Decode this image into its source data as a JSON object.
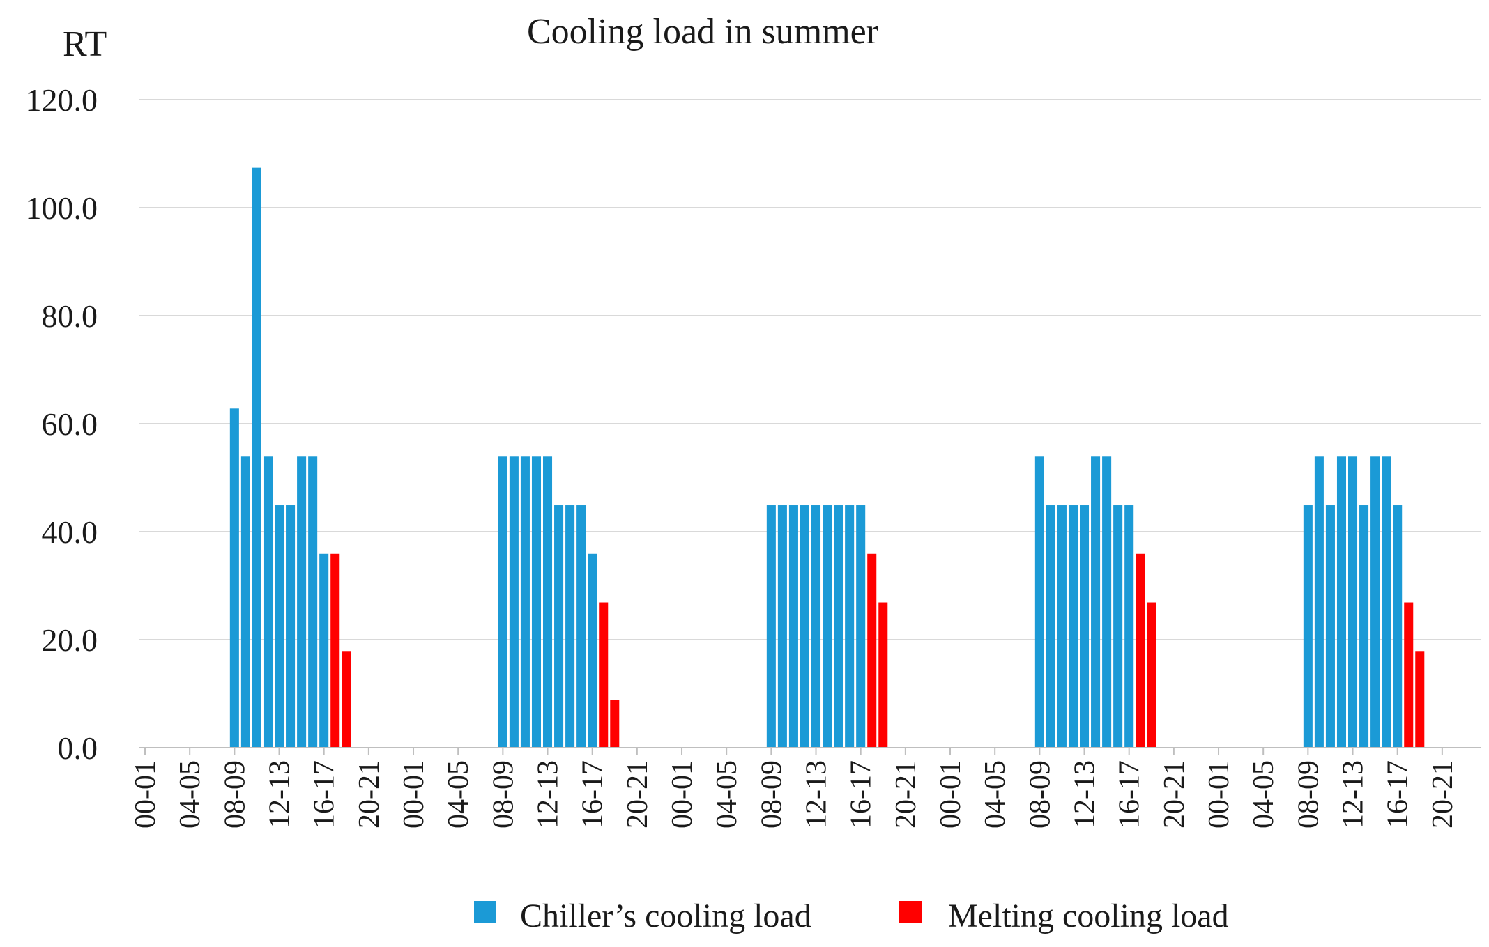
{
  "chart_data": {
    "type": "bar",
    "title": "Cooling load in summer",
    "ylabel": "RT",
    "xlabel": "",
    "ylim": [
      0,
      120
    ],
    "yticks": [
      "0.0",
      "20.0",
      "40.0",
      "60.0",
      "80.0",
      "100.0",
      "120.0"
    ],
    "grid": true,
    "legend_position": "bottom",
    "categories": [
      "00-01",
      "01-02",
      "02-03",
      "03-04",
      "04-05",
      "05-06",
      "06-07",
      "07-08",
      "08-09",
      "09-10",
      "10-11",
      "11-12",
      "12-13",
      "13-14",
      "14-15",
      "15-16",
      "16-17",
      "17-18",
      "18-19",
      "19-20",
      "20-21",
      "21-22",
      "22-23",
      "23-24",
      "00-01",
      "01-02",
      "02-03",
      "03-04",
      "04-05",
      "05-06",
      "06-07",
      "07-08",
      "08-09",
      "09-10",
      "10-11",
      "11-12",
      "12-13",
      "13-14",
      "14-15",
      "15-16",
      "16-17",
      "17-18",
      "18-19",
      "19-20",
      "20-21",
      "21-22",
      "22-23",
      "23-24",
      "00-01",
      "01-02",
      "02-03",
      "03-04",
      "04-05",
      "05-06",
      "06-07",
      "07-08",
      "08-09",
      "09-10",
      "10-11",
      "11-12",
      "12-13",
      "13-14",
      "14-15",
      "15-16",
      "16-17",
      "17-18",
      "18-19",
      "19-20",
      "20-21",
      "21-22",
      "22-23",
      "23-24",
      "00-01",
      "01-02",
      "02-03",
      "03-04",
      "04-05",
      "05-06",
      "06-07",
      "07-08",
      "08-09",
      "09-10",
      "10-11",
      "11-12",
      "12-13",
      "13-14",
      "14-15",
      "15-16",
      "16-17",
      "17-18",
      "18-19",
      "19-20",
      "20-21",
      "21-22",
      "22-23",
      "23-24",
      "00-01",
      "01-02",
      "02-03",
      "03-04",
      "04-05",
      "05-06",
      "06-07",
      "07-08",
      "08-09",
      "09-10",
      "10-11",
      "11-12",
      "12-13",
      "13-14",
      "14-15",
      "15-16",
      "16-17",
      "17-18",
      "18-19",
      "19-20",
      "20-21",
      "21-22",
      "22-23",
      "23-24"
    ],
    "xtick_labels_visible": [
      "00-01",
      "04-05",
      "08-09",
      "12-13",
      "16-17",
      "20-21"
    ],
    "series": [
      {
        "name": "Chiller’s cooling load",
        "color": "#1b9ad6",
        "values": [
          0,
          0,
          0,
          0,
          0,
          0,
          0,
          0,
          62.8,
          53.9,
          107.4,
          53.9,
          44.9,
          44.9,
          53.9,
          53.9,
          35.9,
          0,
          0,
          0,
          0,
          0,
          0,
          0,
          0,
          0,
          0,
          0,
          0,
          0,
          0,
          0,
          53.9,
          53.9,
          53.9,
          53.9,
          53.9,
          44.9,
          44.9,
          44.9,
          35.9,
          0,
          0,
          0,
          0,
          0,
          0,
          0,
          0,
          0,
          0,
          0,
          0,
          0,
          0,
          0,
          44.9,
          44.9,
          44.9,
          44.9,
          44.9,
          44.9,
          44.9,
          44.9,
          44.9,
          0,
          0,
          0,
          0,
          0,
          0,
          0,
          0,
          0,
          0,
          0,
          0,
          0,
          0,
          0,
          53.9,
          44.9,
          44.9,
          44.9,
          44.9,
          53.9,
          53.9,
          44.9,
          44.9,
          0,
          0,
          0,
          0,
          0,
          0,
          0,
          0,
          0,
          0,
          0,
          0,
          0,
          0,
          0,
          44.9,
          53.9,
          44.9,
          53.9,
          53.9,
          44.9,
          53.9,
          53.9,
          44.9,
          0,
          0,
          0,
          0,
          0,
          0,
          0
        ]
      },
      {
        "name": "Melting cooling load",
        "color": "#ff0000",
        "values": [
          0,
          0,
          0,
          0,
          0,
          0,
          0,
          0,
          0,
          0,
          0,
          0,
          0,
          0,
          0,
          0,
          0,
          35.9,
          17.9,
          0,
          0,
          0,
          0,
          0,
          0,
          0,
          0,
          0,
          0,
          0,
          0,
          0,
          0,
          0,
          0,
          0,
          0,
          0,
          0,
          0,
          0,
          26.9,
          8.9,
          0,
          0,
          0,
          0,
          0,
          0,
          0,
          0,
          0,
          0,
          0,
          0,
          0,
          0,
          0,
          0,
          0,
          0,
          0,
          0,
          0,
          0,
          35.9,
          26.9,
          0,
          0,
          0,
          0,
          0,
          0,
          0,
          0,
          0,
          0,
          0,
          0,
          0,
          0,
          0,
          0,
          0,
          0,
          0,
          0,
          0,
          0,
          35.9,
          26.9,
          0,
          0,
          0,
          0,
          0,
          0,
          0,
          0,
          0,
          0,
          0,
          0,
          0,
          0,
          0,
          0,
          0,
          0,
          0,
          0,
          0,
          0,
          26.9,
          17.9,
          0,
          0,
          0,
          0,
          0
        ]
      }
    ]
  }
}
